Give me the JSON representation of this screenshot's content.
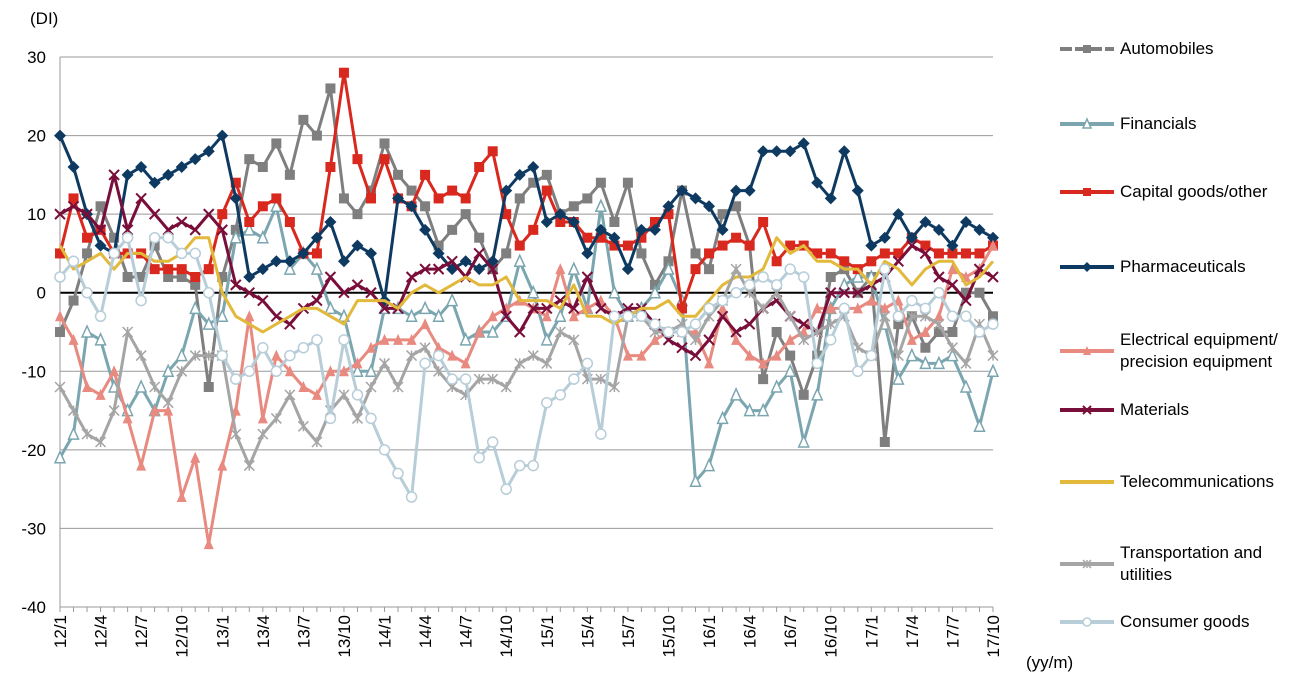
{
  "chart_data": {
    "type": "line",
    "y_label": "(DI)",
    "x_label": "(yy/m)",
    "categories": [
      "12/1",
      null,
      null,
      "12/4",
      null,
      null,
      "12/7",
      null,
      null,
      "12/10",
      null,
      null,
      "13/1",
      null,
      null,
      "13/4",
      null,
      null,
      "13/7",
      null,
      null,
      "13/10",
      null,
      null,
      "14/1",
      null,
      null,
      "14/4",
      null,
      null,
      "14/7",
      null,
      null,
      "14/10",
      null,
      null,
      "15/1",
      null,
      null,
      "15/4",
      null,
      null,
      "15/7",
      null,
      null,
      "15/10",
      null,
      null,
      "16/1",
      null,
      null,
      "16/4",
      null,
      null,
      "16/7",
      null,
      null,
      "16/10",
      null,
      null,
      "17/1",
      null,
      null,
      "17/4",
      null,
      null,
      "17/7",
      null,
      null,
      "17/10"
    ],
    "ylim": [
      -40,
      30
    ],
    "yticks": [
      -40,
      -30,
      -20,
      -10,
      0,
      10,
      20,
      30
    ],
    "grid": true,
    "series": [
      {
        "name": "Automobiles",
        "color": "#7f7f7f",
        "marker": "square",
        "values": [
          -5,
          -1,
          5,
          11,
          7,
          2,
          2,
          6,
          2,
          2,
          1,
          -12,
          2,
          8,
          17,
          16,
          19,
          15,
          22,
          20,
          26,
          12,
          10,
          13,
          19,
          15,
          13,
          11,
          6,
          8,
          10,
          7,
          3,
          5,
          12,
          14,
          15,
          10,
          11,
          12,
          14,
          9,
          14,
          5,
          1,
          4,
          13,
          5,
          3,
          10,
          11,
          6,
          -11,
          -5,
          -8,
          -13,
          -8,
          2,
          3,
          0,
          2,
          -19,
          -4,
          -3,
          -7,
          -5,
          -5,
          0,
          0,
          -3
        ]
      },
      {
        "name": "Financials",
        "color": "#7ba6b0",
        "marker": "triangle-open",
        "values": [
          -21,
          -18,
          -5,
          -6,
          -12,
          -15,
          -12,
          -15,
          -10,
          -8,
          -2,
          -4,
          -3,
          7,
          8,
          7,
          11,
          3,
          5,
          3,
          -2,
          -3,
          -10,
          -10,
          -2,
          -2,
          -3,
          -2,
          -3,
          -1,
          -6,
          -5,
          -5,
          -3,
          4,
          0,
          -6,
          -3,
          3,
          -2,
          11,
          0,
          -3,
          -2,
          0,
          3,
          -1,
          -24,
          -22,
          -16,
          -13,
          -15,
          -15,
          -12,
          -10,
          -19,
          -13,
          -2,
          1,
          2,
          2,
          -4,
          -11,
          -8,
          -9,
          -9,
          -8,
          -12,
          -17,
          -10
        ]
      },
      {
        "name": "Capital goods/other",
        "color": "#d9281e",
        "marker": "square",
        "values": [
          5,
          12,
          7,
          8,
          5,
          5,
          5,
          3,
          3,
          3,
          2,
          3,
          10,
          14,
          9,
          11,
          12,
          9,
          5,
          5,
          16,
          28,
          17,
          12,
          17,
          12,
          11,
          15,
          12,
          13,
          12,
          16,
          18,
          10,
          6,
          8,
          13,
          9,
          9,
          7,
          7,
          6,
          6,
          7,
          9,
          10,
          -2,
          3,
          5,
          6,
          7,
          6,
          9,
          4,
          6,
          6,
          5,
          5,
          4,
          3,
          4,
          5,
          5,
          7,
          6,
          5,
          5,
          5,
          5,
          6
        ]
      },
      {
        "name": "Pharmaceuticals",
        "color": "#0e3a62",
        "marker": "diamond",
        "values": [
          20,
          16,
          10,
          6,
          5,
          15,
          16,
          14,
          15,
          16,
          17,
          18,
          20,
          12,
          2,
          3,
          4,
          4,
          5,
          7,
          9,
          4,
          6,
          5,
          -1,
          12,
          11,
          8,
          5,
          3,
          4,
          3,
          4,
          13,
          15,
          16,
          9,
          10,
          9,
          5,
          8,
          7,
          3,
          8,
          8,
          11,
          13,
          12,
          11,
          8,
          13,
          13,
          18,
          18,
          18,
          19,
          14,
          12,
          18,
          13,
          6,
          7,
          10,
          7,
          9,
          8,
          6,
          9,
          8,
          7
        ]
      },
      {
        "name": "Electrical equipment/ precision equipment",
        "color": "#e88a80",
        "marker": "triangle",
        "values": [
          -3,
          -6,
          -12,
          -13,
          -10,
          -16,
          -22,
          -15,
          -15,
          -26,
          -21,
          -32,
          -22,
          -15,
          -3,
          -16,
          -8,
          -10,
          -12,
          -13,
          -10,
          -10,
          -9,
          -7,
          -6,
          -6,
          -6,
          -4,
          -7,
          -8,
          -9,
          -5,
          -3,
          -2,
          -1,
          -2,
          -3,
          3,
          -3,
          -2,
          -1,
          -3,
          -8,
          -8,
          -6,
          -5,
          -5,
          -5,
          -9,
          -2,
          -6,
          -8,
          -9,
          -8,
          -6,
          -5,
          -2,
          -2,
          -2,
          -2,
          -1,
          -2,
          -1,
          -6,
          -5,
          -3,
          3,
          2,
          3,
          6
        ]
      },
      {
        "name": "Materials",
        "color": "#7a0e3a",
        "marker": "x",
        "values": [
          10,
          11,
          10,
          8,
          15,
          8,
          12,
          10,
          8,
          9,
          8,
          10,
          8,
          1,
          0,
          -1,
          -3,
          -4,
          -2,
          -1,
          2,
          0,
          1,
          0,
          -2,
          -2,
          2,
          3,
          3,
          4,
          2,
          5,
          3,
          -3,
          -5,
          -2,
          -2,
          -1,
          -2,
          2,
          -2,
          -3,
          -2,
          -2,
          -4,
          -6,
          -7,
          -8,
          -6,
          -3,
          -5,
          -4,
          -2,
          -1,
          -3,
          -4,
          -5,
          0,
          0,
          0,
          1,
          2,
          4,
          6,
          5,
          2,
          1,
          -1,
          3,
          2
        ]
      },
      {
        "name": "Telecommunications",
        "color": "#e2b93b",
        "values": [
          6,
          3,
          4,
          5,
          3,
          5,
          5,
          4,
          4,
          5,
          7,
          7,
          0,
          -3,
          -4,
          -5,
          -4,
          -3,
          -2,
          -2,
          -3,
          -4,
          -1,
          -1,
          -1,
          -2,
          0,
          1,
          0,
          1,
          2,
          1,
          1,
          2,
          -1,
          -1,
          -1,
          -2,
          1,
          -3,
          -3,
          -4,
          -3,
          -2,
          -2,
          -1,
          -3,
          -3,
          -1,
          1,
          2,
          2,
          3,
          7,
          5,
          6,
          4,
          4,
          3,
          3,
          1,
          4,
          3,
          1,
          3,
          4,
          4,
          1,
          2,
          4
        ]
      },
      {
        "name": "Transportation and utilities",
        "color": "#a5a5a5",
        "marker": "star",
        "values": [
          -12,
          -15,
          -18,
          -19,
          -15,
          -5,
          -8,
          -12,
          -14,
          -10,
          -8,
          -8,
          -8,
          -18,
          -22,
          -18,
          -16,
          -13,
          -17,
          -19,
          -15,
          -13,
          -16,
          -12,
          -9,
          -12,
          -8,
          -7,
          -10,
          -12,
          -13,
          -11,
          -11,
          -12,
          -9,
          -8,
          -9,
          -5,
          -6,
          -11,
          -11,
          -12,
          -3,
          -3,
          -5,
          -5,
          -4,
          -6,
          -3,
          -1,
          3,
          0,
          -2,
          0,
          -3,
          -6,
          -5,
          -4,
          -3,
          -7,
          -8,
          -3,
          -8,
          -3,
          -3,
          -4,
          -7,
          -9,
          -4,
          -8
        ]
      },
      {
        "name": "Consumer goods",
        "color": "#b7cdd8",
        "marker": "circle-open",
        "values": [
          2,
          4,
          0,
          -3,
          5,
          7,
          -1,
          7,
          7,
          5,
          5,
          0,
          -8,
          -11,
          -10,
          -7,
          -10,
          -8,
          -7,
          -6,
          -16,
          -6,
          -13,
          -16,
          -20,
          -23,
          -26,
          -9,
          -8,
          -11,
          -11,
          -21,
          -19,
          -25,
          -22,
          -22,
          -14,
          -13,
          -11,
          -9,
          -18,
          -3,
          -3,
          -3,
          -4,
          -5,
          -5,
          -4,
          -2,
          -1,
          0,
          1,
          2,
          1,
          3,
          2,
          -9,
          -6,
          -2,
          -10,
          -8,
          3,
          -3,
          -1,
          -2,
          0,
          -3,
          -3,
          -5,
          -4
        ]
      }
    ]
  }
}
